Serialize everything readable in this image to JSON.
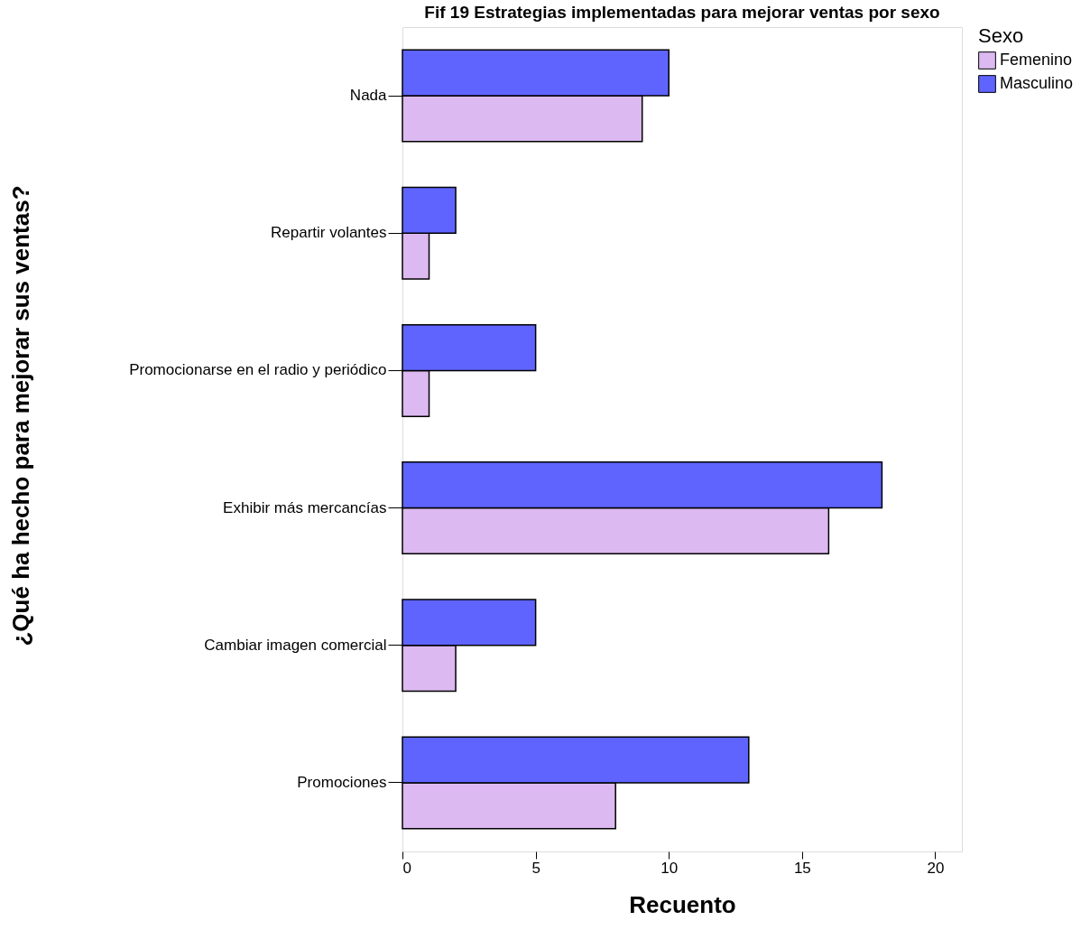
{
  "chart_data": {
    "type": "bar",
    "orientation": "horizontal",
    "title": "Fif 19 Estrategias implementadas para mejorar ventas por sexo",
    "xlabel": "Recuento",
    "ylabel": "¿Qué ha hecho para mejorar sus ventas?",
    "legend_title": "Sexo",
    "legend": "right",
    "grid": false,
    "categories": [
      "Nada",
      "Repartir volantes",
      "Promocionarse en el radio y periódico",
      "Exhibir más mercancías",
      "Cambiar imagen comercial",
      "Promociones"
    ],
    "series": [
      {
        "name": "Femenino",
        "color": "#dcb9f0",
        "values": [
          9,
          1,
          1,
          16,
          2,
          8
        ]
      },
      {
        "name": "Masculino",
        "color": "#5f64ff",
        "values": [
          10,
          2,
          5,
          18,
          5,
          13
        ]
      }
    ],
    "xlim": [
      0,
      21
    ],
    "xticks": [
      0,
      5,
      10,
      15,
      20
    ]
  }
}
